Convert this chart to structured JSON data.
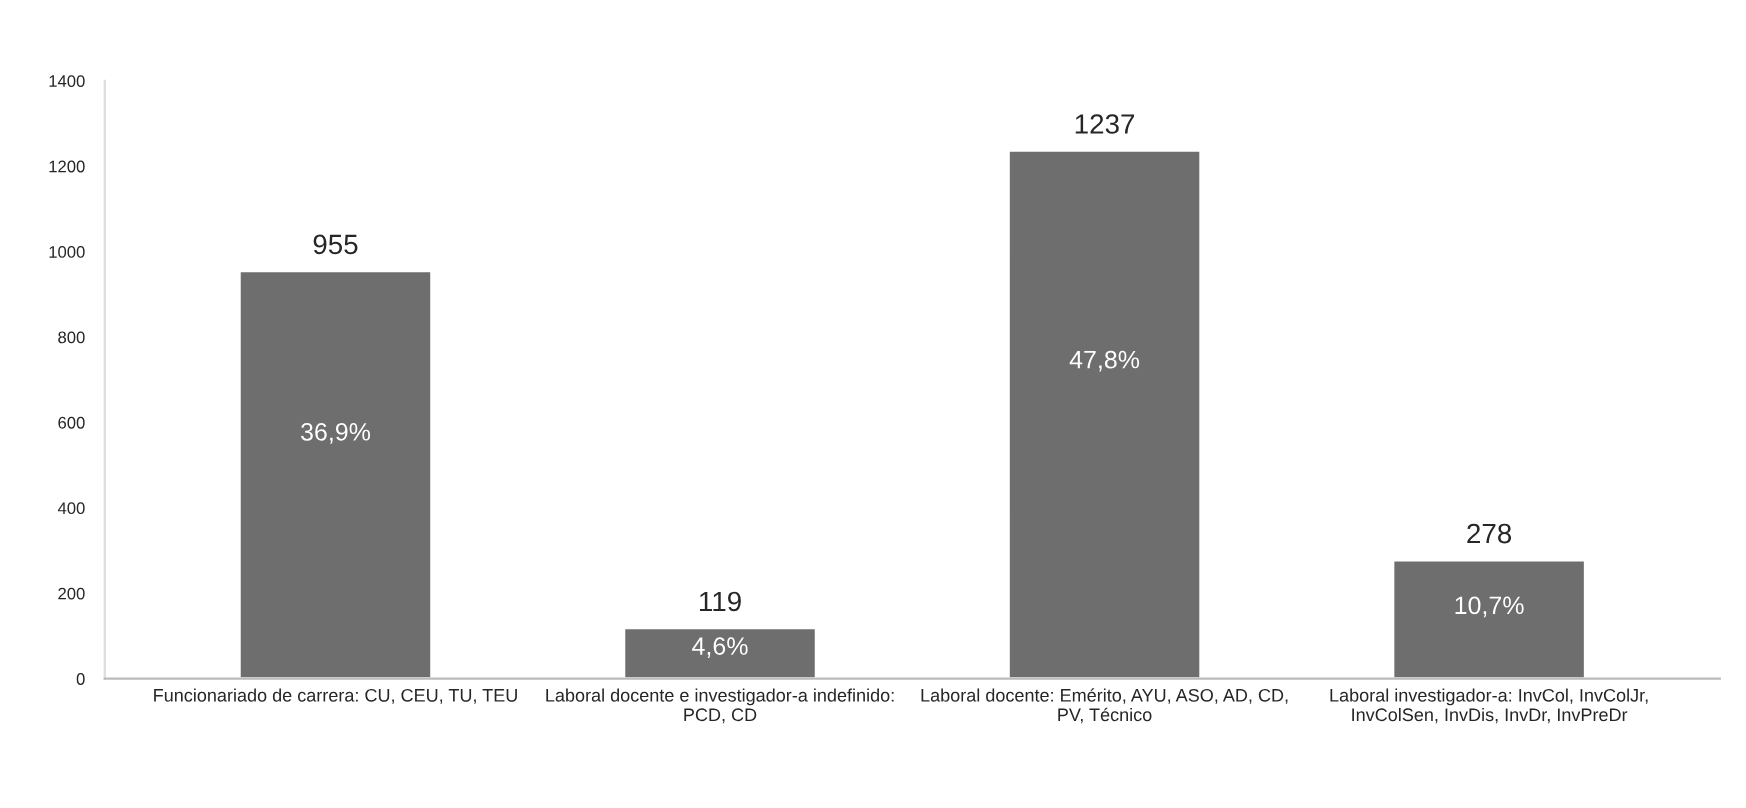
{
  "chart_data": {
    "type": "bar",
    "categories": [
      "Funcionariado de carrera: CU, CEU, TU, TEU",
      "Laboral docente e investigador-a indefinido:\nPCD, CD",
      "Laboral docente: Emérito, AYU, ASO, AD, CD,\nPV, Técnico",
      "Laboral investigador-a: InvCol, InvColJr,\nInvColSen, InvDis, InvDr, InvPreDr"
    ],
    "values": [
      955,
      119,
      1237,
      278
    ],
    "color": "#6e6e6e",
    "data_labels": true,
    "annotations": [
      "36,9%",
      "4,6%",
      "47,8%",
      "10,7%"
    ],
    "ylim": [
      0,
      1400
    ],
    "yticks": [
      0,
      200,
      400,
      600,
      800,
      1000,
      1200,
      1400
    ],
    "grid": false,
    "legend": false
  }
}
